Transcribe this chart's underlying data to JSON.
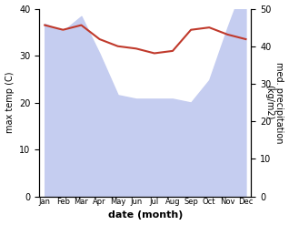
{
  "months": [
    "Jan",
    "Feb",
    "Mar",
    "Apr",
    "May",
    "Jun",
    "Jul",
    "Aug",
    "Sep",
    "Oct",
    "Nov",
    "Dec"
  ],
  "temp_max": [
    36.5,
    35.5,
    36.5,
    33.5,
    32.0,
    31.5,
    30.5,
    31.0,
    35.5,
    36.0,
    34.5,
    33.5
  ],
  "precipitation": [
    46,
    44,
    48,
    38,
    27,
    26,
    26,
    26,
    25,
    31,
    45,
    58
  ],
  "temp_color": "#c0392b",
  "precip_fill_color": "#c5cdf0",
  "ylabel_left": "max temp (C)",
  "ylabel_right": "med. precipitation\n(kg/m2)",
  "xlabel": "date (month)",
  "ylim_left": [
    0,
    40
  ],
  "ylim_right": [
    0,
    50
  ],
  "bg_color": "#ffffff"
}
